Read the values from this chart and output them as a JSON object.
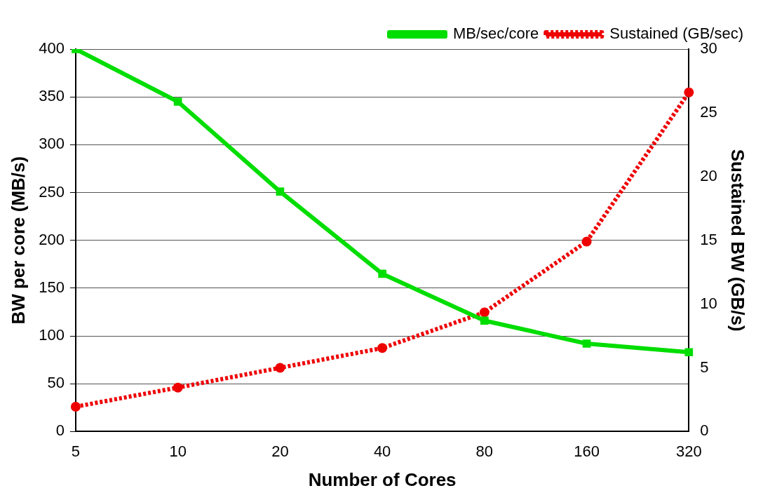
{
  "chart_data": {
    "type": "line",
    "xlabel": "Number of Cores",
    "ylabel": "BW per core (MB/s)",
    "y2label": "Sustained BW (GB/s)",
    "categories": [
      "5",
      "10",
      "20",
      "40",
      "80",
      "160",
      "320"
    ],
    "series": [
      {
        "name": "MB/sec/core",
        "color": "#00dd00",
        "values": [
          400,
          345,
          251,
          165,
          116,
          92,
          83
        ],
        "line_style": "solid",
        "marker": "square"
      },
      {
        "name": "Sustained (GB/sec)",
        "color": "#ee0000",
        "values": [
          1.95,
          3.45,
          5.0,
          6.55,
          9.35,
          14.9,
          26.6
        ],
        "axis": "y2",
        "line_style": "dotted",
        "marker": "circle"
      }
    ],
    "ylim": [
      0,
      400
    ],
    "yticks": [
      0,
      50,
      100,
      150,
      200,
      250,
      300,
      350,
      400
    ],
    "y2lim": [
      0,
      30
    ],
    "y2ticks": [
      0,
      5,
      10,
      15,
      20,
      25,
      30
    ],
    "grid": "y",
    "legend": "top right"
  }
}
